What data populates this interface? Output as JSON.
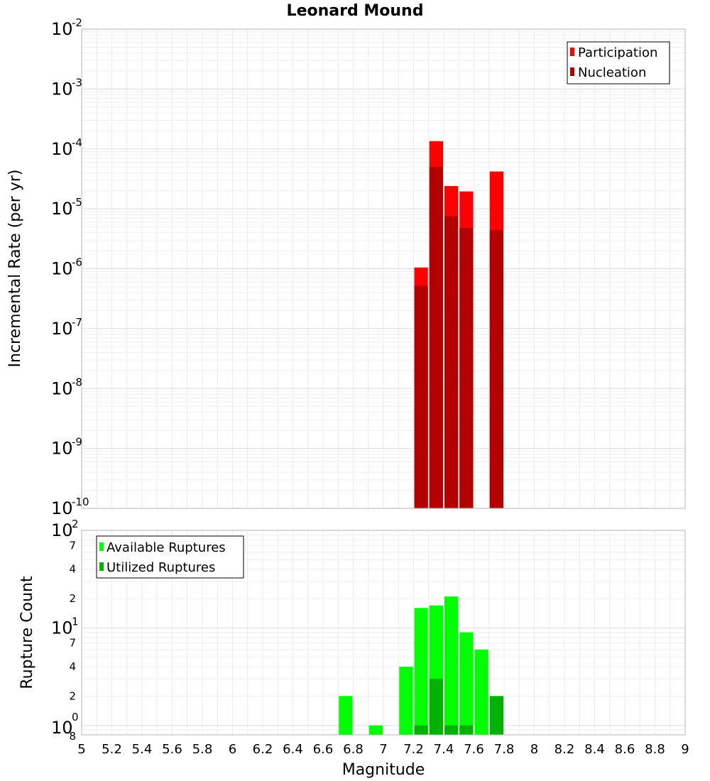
{
  "chart_data": [
    {
      "type": "bar",
      "title": "Leonard Mound",
      "xlabel": "",
      "ylabel": "Incremental Rate (per yr)",
      "yscale": "log",
      "ylim": [
        1e-10,
        0.01
      ],
      "xlim": [
        5,
        9
      ],
      "grid": true,
      "legend_position": "top-right",
      "x": [
        7.25,
        7.35,
        7.45,
        7.55,
        7.75
      ],
      "series": [
        {
          "name": "Participation",
          "color": "#ff0000",
          "values": [
            1.05e-06,
            0.000135,
            2.4e-05,
            1.95e-05,
            4.2e-05
          ]
        },
        {
          "name": "Nucleation",
          "color": "#b30000",
          "values": [
            5.2e-07,
            5e-05,
            7.5e-06,
            4.8e-06,
            4.4e-06
          ]
        }
      ]
    },
    {
      "type": "bar",
      "title": "",
      "xlabel": "Magnitude",
      "ylabel": "Rupture Count",
      "yscale": "log",
      "ylim": [
        0.8,
        100
      ],
      "xlim": [
        5,
        9
      ],
      "grid": true,
      "legend_position": "top-left",
      "x": [
        6.75,
        6.95,
        7.15,
        7.25,
        7.35,
        7.45,
        7.55,
        7.65,
        7.75
      ],
      "series": [
        {
          "name": "Available Ruptures",
          "color": "#00ff00",
          "values": [
            2,
            1,
            4,
            16,
            17,
            21,
            9,
            6,
            0
          ]
        },
        {
          "name": "Utilized Ruptures",
          "color": "#00b300",
          "values": [
            0,
            0,
            0,
            1,
            3,
            1,
            1,
            0,
            2
          ]
        }
      ]
    }
  ],
  "x_ticks": [
    "5",
    "5.2",
    "5.4",
    "5.6",
    "5.8",
    "6",
    "6.2",
    "6.4",
    "6.6",
    "6.8",
    "7",
    "7.2",
    "7.4",
    "7.6",
    "7.8",
    "8",
    "8.2",
    "8.4",
    "8.6",
    "8.8",
    "9"
  ],
  "top_y_ticks": [
    {
      "base": "10",
      "exp": "-2"
    },
    {
      "base": "10",
      "exp": "-3"
    },
    {
      "base": "10",
      "exp": "-4"
    },
    {
      "base": "10",
      "exp": "-5"
    },
    {
      "base": "10",
      "exp": "-6"
    },
    {
      "base": "10",
      "exp": "-7"
    },
    {
      "base": "10",
      "exp": "-8"
    },
    {
      "base": "10",
      "exp": "-9"
    },
    {
      "base": "10",
      "exp": "-10"
    }
  ],
  "bottom_y_decades": [
    {
      "base": "10",
      "exp": "2"
    },
    {
      "base": "10",
      "exp": "1"
    },
    {
      "base": "10",
      "exp": "0"
    }
  ],
  "bottom_y_minor_labels": [
    "7",
    "4",
    "2",
    "7",
    "4",
    "2",
    "8"
  ]
}
